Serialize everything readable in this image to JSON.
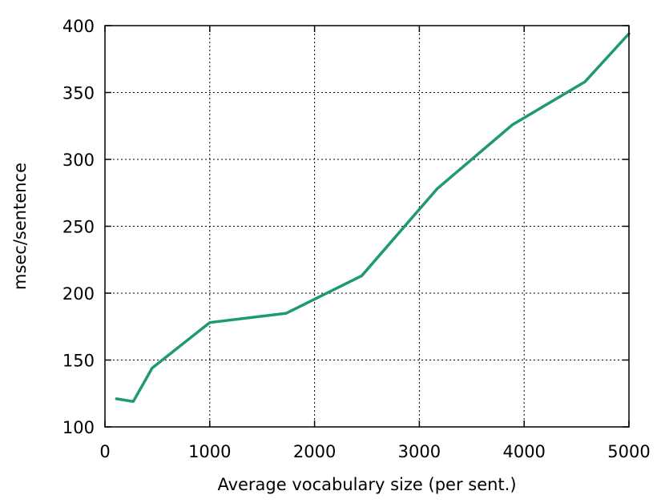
{
  "chart_data": {
    "type": "line",
    "title": "",
    "xlabel": "Average vocabulary size (per sent.)",
    "ylabel": "msec/sentence",
    "xlim": [
      0,
      5000
    ],
    "ylim": [
      100,
      400
    ],
    "xticks": [
      0,
      1000,
      2000,
      3000,
      4000,
      5000
    ],
    "yticks": [
      100,
      150,
      200,
      250,
      300,
      350,
      400
    ],
    "grid": true,
    "series": [
      {
        "color": "#1f9a6e",
        "x": [
          110,
          270,
          450,
          1000,
          1730,
          2450,
          3170,
          3890,
          4580,
          5000
        ],
        "y": [
          121,
          119,
          144,
          178,
          185,
          213,
          278,
          326,
          358,
          394
        ]
      }
    ]
  }
}
